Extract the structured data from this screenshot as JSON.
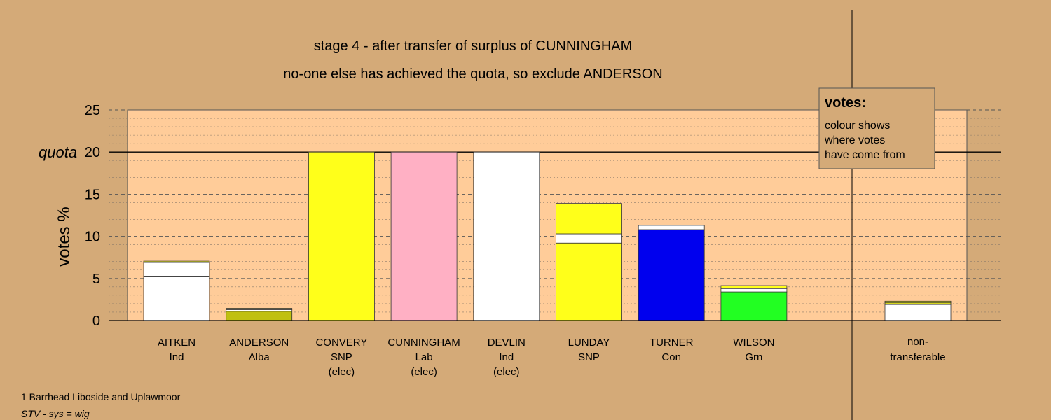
{
  "chart_data": {
    "type": "bar",
    "title": "stage 4 - after transfer of surplus of CUNNINGHAM",
    "subtitle": "no-one else has achieved the quota, so exclude ANDERSON",
    "ylabel": "votes %",
    "ylim": [
      0,
      25
    ],
    "yticks": [
      0,
      5,
      10,
      15,
      20,
      25
    ],
    "quota": {
      "label": "quota",
      "value": 20
    },
    "grid": true,
    "categories": [
      {
        "name": "AITKEN",
        "party": "Ind",
        "status": ""
      },
      {
        "name": "ANDERSON",
        "party": "Alba",
        "status": ""
      },
      {
        "name": "CONVERY",
        "party": "SNP",
        "status": "(elec)"
      },
      {
        "name": "CUNNINGHAM",
        "party": "Lab",
        "status": "(elec)"
      },
      {
        "name": "DEVLIN",
        "party": "Ind",
        "status": "(elec)"
      },
      {
        "name": "LUNDAY",
        "party": "SNP",
        "status": ""
      },
      {
        "name": "TURNER",
        "party": "Con",
        "status": ""
      },
      {
        "name": "WILSON",
        "party": "Grn",
        "status": ""
      }
    ],
    "bars": [
      {
        "segments": [
          {
            "value": 5.2,
            "color": "#ffffff"
          },
          {
            "value": 1.7,
            "color": "#ffffff"
          },
          {
            "value": 0.15,
            "color": "#ffff1a"
          }
        ]
      },
      {
        "segments": [
          {
            "value": 1.1,
            "color": "#c0c010"
          },
          {
            "value": 0.2,
            "color": "#ffffff"
          },
          {
            "value": 0.15,
            "color": "#ffff1a"
          }
        ]
      },
      {
        "segments": [
          {
            "value": 20.0,
            "color": "#ffff1a"
          }
        ]
      },
      {
        "segments": [
          {
            "value": 20.0,
            "color": "#ffb0c4"
          }
        ]
      },
      {
        "segments": [
          {
            "value": 20.0,
            "color": "#ffffff"
          }
        ]
      },
      {
        "segments": [
          {
            "value": 9.2,
            "color": "#ffff1a"
          },
          {
            "value": 1.1,
            "color": "#ffffff"
          },
          {
            "value": 3.6,
            "color": "#ffff1a"
          }
        ]
      },
      {
        "segments": [
          {
            "value": 10.8,
            "color": "#0000ee"
          },
          {
            "value": 0.5,
            "color": "#ffffff"
          }
        ]
      },
      {
        "segments": [
          {
            "value": 3.4,
            "color": "#22ff22"
          },
          {
            "value": 0.4,
            "color": "#ffffff"
          },
          {
            "value": 0.35,
            "color": "#ffff1a"
          }
        ]
      }
    ],
    "nontransferable": {
      "label_line1": "non-",
      "label_line2": "transferable",
      "segments": [
        {
          "value": 1.9,
          "color": "#ffffff"
        },
        {
          "value": 0.2,
          "color": "#ffff1a"
        },
        {
          "value": 0.2,
          "color": "#ffff1a"
        }
      ]
    },
    "legend": {
      "title": "votes:",
      "lines": [
        "colour shows",
        "where votes",
        "have come from"
      ]
    }
  },
  "footer": {
    "ward": "1 Barrhead Liboside and Uplawmoor",
    "system": "STV - sys = wig"
  }
}
